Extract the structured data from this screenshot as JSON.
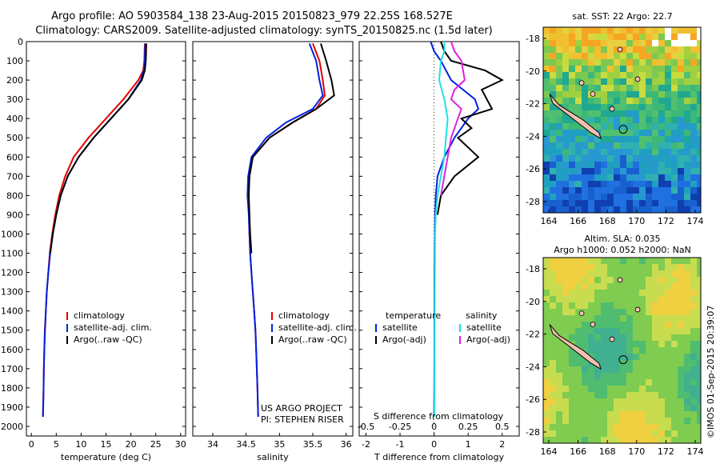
{
  "header": {
    "line1": "Argo profile: AO 5903584_138 23-Aug-2015 20150823_979 22.25S 168.527E",
    "line2": "Climatology: CARS2009. Satellite-adjusted climatology: synTS_20150825.nc (1.5d later)"
  },
  "credits": {
    "project": "US ARGO PROJECT",
    "pi": "PI: STEPHEN RISER",
    "stamp": "©IMOS 01-Sep-2015 20:39:07"
  },
  "colors": {
    "climatology": "#e00000",
    "satellite": "#0020e0",
    "argo": "#000000",
    "sat_cyan": "#20e0e0",
    "argo_magenta": "#e020e0"
  },
  "map_titles": {
    "sst": "sat. SST: 22 Argo: 22.7",
    "sla_line1": "Altim. SLA: 0.035",
    "sla_line2": "Argo h1000: 0.052 h2000: NaN"
  },
  "legend_profile": {
    "items": [
      {
        "label": "climatology",
        "color": "#e00000"
      },
      {
        "label": "satellite-adj. clim.",
        "color": "#0020e0"
      },
      {
        "label": "Argo(..raw -QC)",
        "color": "#000000"
      }
    ]
  },
  "legend_diff": {
    "temperature_header": "temperature",
    "salinity_header": "salinity",
    "t_items": [
      {
        "label": "satellite",
        "color": "#0020e0"
      },
      {
        "label": "Argo(-adj)",
        "color": "#000000"
      }
    ],
    "s_items": [
      {
        "label": "satellite",
        "color": "#20e0e0"
      },
      {
        "label": "Argo(-adj)",
        "color": "#e020e0"
      }
    ]
  },
  "chart_data": [
    {
      "type": "line",
      "xlabel": "temperature (deg C)",
      "xlim": [
        -1,
        31
      ],
      "ylim": [
        2050,
        0
      ],
      "xticks": [
        0,
        5,
        10,
        15,
        20,
        25,
        30
      ],
      "yticks": [
        0,
        100,
        200,
        300,
        400,
        500,
        600,
        700,
        800,
        900,
        1000,
        1100,
        1200,
        1300,
        1400,
        1500,
        1600,
        1700,
        1800,
        1900,
        2000
      ],
      "series": [
        {
          "name": "climatology",
          "x": [
            22.8,
            22.7,
            22.5,
            21.5,
            18.5,
            15,
            11.5,
            8.5,
            6.8,
            5.6,
            4.8,
            4.2,
            3.7,
            3.4,
            3.1,
            2.9,
            2.7,
            2.6,
            2.5,
            2.45,
            2.3
          ],
          "y": [
            10,
            100,
            150,
            200,
            300,
            400,
            500,
            600,
            700,
            800,
            900,
            1000,
            1100,
            1200,
            1300,
            1400,
            1500,
            1600,
            1700,
            1800,
            1950
          ]
        },
        {
          "name": "satellite-adj. clim.",
          "x": [
            22.9,
            22.8,
            22.6,
            22.0,
            19.5,
            16,
            12.5,
            9.5,
            7.3,
            5.9,
            5.0,
            4.3,
            3.8,
            3.4,
            3.1,
            2.9,
            2.75,
            2.6,
            2.5,
            2.45,
            2.35
          ],
          "y": [
            10,
            100,
            150,
            200,
            300,
            400,
            500,
            600,
            700,
            800,
            900,
            1000,
            1100,
            1200,
            1300,
            1400,
            1500,
            1600,
            1700,
            1800,
            1950
          ]
        },
        {
          "name": "Argo(..raw -QC)",
          "x": [
            23.1,
            23.0,
            22.8,
            22.2,
            19.5,
            16,
            12.5,
            9.5,
            7.3,
            5.9,
            5.0,
            4.3,
            3.8
          ],
          "y": [
            10,
            100,
            150,
            200,
            300,
            400,
            500,
            600,
            700,
            800,
            900,
            1000,
            1100
          ]
        }
      ]
    },
    {
      "type": "line",
      "xlabel": "salinity",
      "xlim": [
        33.7,
        36.1
      ],
      "ylim": [
        2050,
        0
      ],
      "xticks": [
        34,
        34.5,
        35,
        35.5,
        36
      ],
      "series": [
        {
          "name": "climatology",
          "x": [
            35.5,
            35.6,
            35.65,
            35.68,
            35.55,
            35.2,
            34.85,
            34.6,
            34.55,
            34.53,
            34.54,
            34.55,
            34.56,
            34.58,
            34.6,
            34.62,
            34.64,
            34.65,
            34.66,
            34.67,
            34.68
          ],
          "y": [
            10,
            100,
            200,
            280,
            350,
            420,
            500,
            600,
            700,
            800,
            900,
            1000,
            1100,
            1200,
            1300,
            1400,
            1500,
            1600,
            1700,
            1800,
            1950
          ]
        },
        {
          "name": "satellite-adj. clim.",
          "x": [
            35.45,
            35.55,
            35.6,
            35.65,
            35.5,
            35.1,
            34.8,
            34.58,
            34.53,
            34.52,
            34.54,
            34.55,
            34.56,
            34.58,
            34.6,
            34.62,
            34.64,
            34.65,
            34.66,
            34.67,
            34.68
          ],
          "y": [
            10,
            100,
            200,
            280,
            350,
            420,
            500,
            600,
            700,
            800,
            900,
            1000,
            1100,
            1200,
            1300,
            1400,
            1500,
            1600,
            1700,
            1800,
            1950
          ]
        },
        {
          "name": "Argo(..raw -QC)",
          "x": [
            35.62,
            35.7,
            35.78,
            35.82,
            35.55,
            35.2,
            34.85,
            34.6,
            34.55,
            34.54,
            34.55,
            34.56,
            34.58
          ],
          "y": [
            10,
            100,
            200,
            280,
            350,
            420,
            500,
            600,
            700,
            800,
            900,
            1000,
            1100
          ]
        }
      ]
    },
    {
      "type": "line",
      "xlabel": "T difference from climatology",
      "x2label": "S difference from climatology",
      "xlim": [
        -2.2,
        2.5
      ],
      "ylim": [
        2050,
        0
      ],
      "xticks": [
        -2,
        -1,
        0,
        1,
        2
      ],
      "x2ticks": [
        "-0.5",
        "-0.25",
        "0",
        "0.25",
        "0.5"
      ],
      "series": [
        {
          "name": "temperature satellite",
          "x": [
            -0.1,
            0,
            0.2,
            0.5,
            1.2,
            1.3,
            1.0,
            0.6,
            0.3,
            0.1,
            0.05,
            0.03,
            0.02,
            0.01,
            0.01,
            0.0
          ],
          "y": [
            0,
            50,
            100,
            200,
            300,
            350,
            400,
            500,
            600,
            700,
            800,
            900,
            1000,
            1200,
            1600,
            1950
          ]
        },
        {
          "name": "temperature Argo(-adj)",
          "x": [
            0.2,
            0.3,
            0.5,
            1.5,
            2.0,
            1.4,
            1.7,
            0.8,
            1.1,
            0.7,
            1.3,
            0.6,
            0.2,
            0.1
          ],
          "y": [
            0,
            50,
            100,
            150,
            200,
            250,
            350,
            400,
            450,
            500,
            600,
            700,
            800,
            900
          ]
        },
        {
          "name": "salinity satellite",
          "x": [
            0.3,
            0.3,
            0.2,
            0.15,
            0.3,
            0.4,
            0.35,
            0.3,
            0.2,
            0.1,
            0.05,
            0.03,
            0.02,
            0.01
          ],
          "y": [
            0,
            50,
            100,
            200,
            300,
            400,
            500,
            600,
            700,
            800,
            900,
            1000,
            1200,
            1950
          ]
        },
        {
          "name": "salinity Argo(-adj)",
          "x": [
            0.5,
            0.6,
            0.8,
            0.9,
            0.6,
            0.5,
            0.8,
            0.7,
            0.5,
            0.4,
            0.3,
            0.2
          ],
          "y": [
            0,
            50,
            100,
            200,
            250,
            300,
            350,
            400,
            500,
            600,
            700,
            800
          ]
        }
      ]
    }
  ],
  "maps": {
    "xticks": [
      "164",
      "166",
      "168",
      "170",
      "172",
      "174"
    ],
    "yticks": [
      "-18",
      "-20",
      "-22",
      "-24",
      "-26",
      "-28"
    ]
  }
}
